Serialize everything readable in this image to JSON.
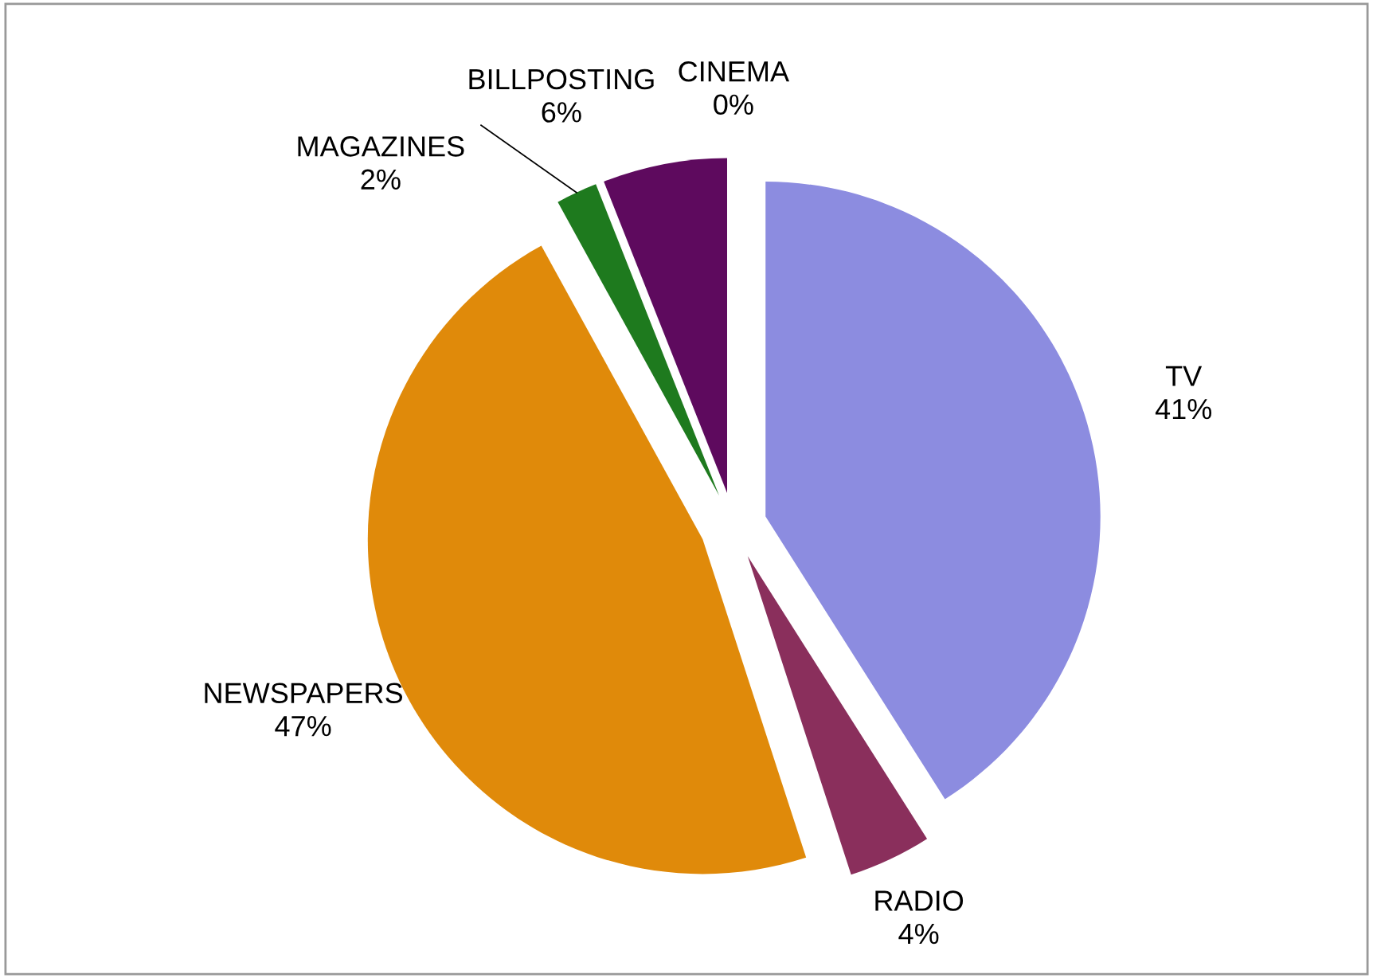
{
  "chart_data": {
    "type": "pie",
    "categories": [
      "TV",
      "RADIO",
      "NEWSPAPERS",
      "MAGAZINES",
      "BILLPOSTING",
      "CINEMA"
    ],
    "values": [
      41,
      4,
      47,
      2,
      6,
      0
    ],
    "value_labels": [
      "41%",
      "4%",
      "47%",
      "2%",
      "6%",
      "0%"
    ],
    "colors": [
      "#8c8ce0",
      "#8a2f5c",
      "#e08a0a",
      "#1e7a1e",
      "#5e0a5e",
      "#ff8a8a"
    ],
    "legend": false
  }
}
